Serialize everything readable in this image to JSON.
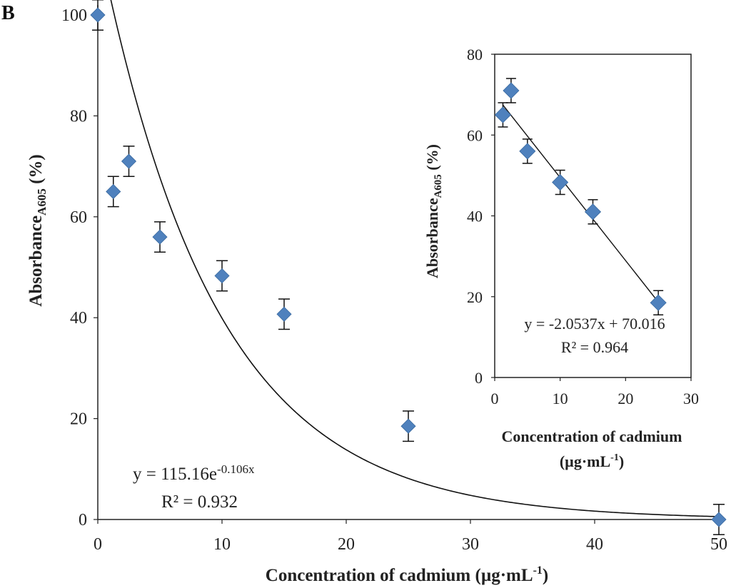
{
  "panel_label": "B",
  "chart_data": [
    {
      "type": "scatter",
      "name": "main",
      "xlabel": "Concentration of cadmium (µg·mL",
      "xlabel_sup": "-1",
      "xlabel_close": ")",
      "ylabel": "Absorbance",
      "ylabel_sub": "A605",
      "ylabel_suffix": " (%)",
      "xlim": [
        0,
        50
      ],
      "ylim": [
        0,
        100
      ],
      "xticks": [
        0,
        10,
        20,
        30,
        40,
        50
      ],
      "yticks": [
        0,
        20,
        40,
        60,
        80,
        100
      ],
      "x": [
        0,
        1.25,
        2.5,
        5,
        10,
        15,
        25,
        50
      ],
      "y": [
        100,
        65,
        71,
        56,
        48.3,
        40.7,
        18.5,
        0
      ],
      "yerr": [
        3,
        3,
        3,
        3,
        3,
        3,
        3,
        3
      ],
      "marker_color": "#4f81bd",
      "trendline": {
        "type": "exponential",
        "a": 115.16,
        "b": -0.106
      },
      "equation_prefix": "y = 115.16e",
      "equation_exponent": "-0.106x",
      "r2_label": "R² = 0.932",
      "equation_position": "bottom-left"
    },
    {
      "type": "scatter",
      "name": "inset",
      "xlabel_line1": "Concentration of cadmium",
      "xlabel_line2": "(µg·mL",
      "xlabel_line2_sup": "-1",
      "xlabel_line2_close": ")",
      "ylabel": "Absorbance",
      "ylabel_sub": "A605",
      "ylabel_suffix": " (%)",
      "xlim": [
        0,
        30
      ],
      "ylim": [
        0,
        80
      ],
      "xticks": [
        0,
        10,
        20,
        30
      ],
      "yticks": [
        0,
        20,
        40,
        60,
        80
      ],
      "x": [
        1.25,
        2.5,
        5,
        10,
        15,
        25
      ],
      "y": [
        65,
        71,
        56,
        48.3,
        41,
        18.5
      ],
      "yerr": [
        3,
        3,
        3,
        3,
        3,
        3
      ],
      "marker_color": "#4f81bd",
      "trendline": {
        "type": "linear",
        "slope": -2.0537,
        "intercept": 70.016,
        "x_range": [
          1.25,
          25
        ]
      },
      "equation_label": "y = -2.0537x + 70.016",
      "r2_label": "R² = 0.964",
      "equation_position": "bottom-left"
    }
  ]
}
